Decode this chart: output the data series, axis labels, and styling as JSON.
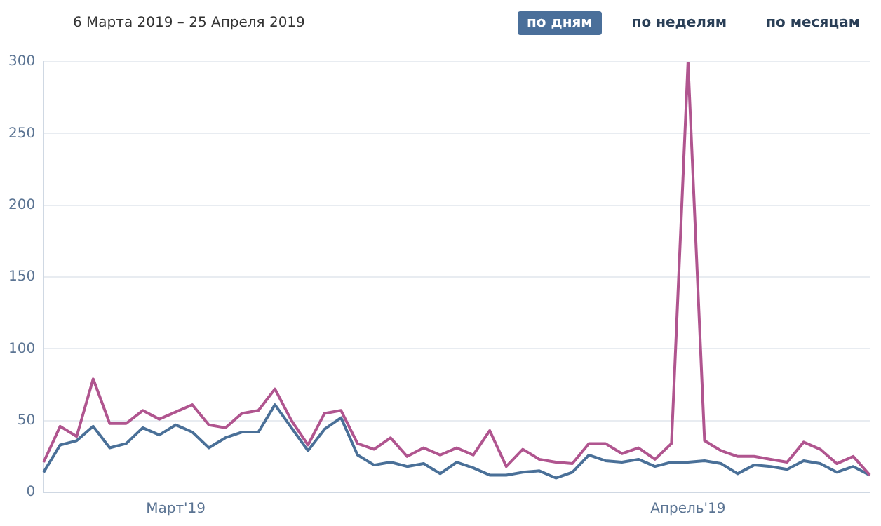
{
  "chart_data": {
    "type": "line",
    "title": "6 Марта 2019 – 25 Апреля 2019",
    "annotations": [
      "по дням",
      "по неделям",
      "по месяцам"
    ],
    "categories": [
      null,
      null,
      null,
      null,
      null,
      null,
      null,
      null,
      "Март'19",
      null,
      null,
      null,
      null,
      null,
      null,
      null,
      null,
      null,
      null,
      null,
      null,
      null,
      null,
      null,
      null,
      null,
      null,
      null,
      null,
      null,
      null,
      null,
      null,
      null,
      null,
      null,
      null,
      null,
      null,
      "Апрель'19",
      null,
      null,
      null,
      null,
      null,
      null,
      null,
      null,
      null,
      null,
      null
    ],
    "series": [
      {
        "color": "#b0558f",
        "values": [
          21,
          46,
          39,
          79,
          48,
          48,
          57,
          51,
          56,
          61,
          47,
          45,
          55,
          57,
          72,
          50,
          33,
          55,
          57,
          34,
          30,
          38,
          25,
          31,
          26,
          31,
          26,
          43,
          18,
          30,
          23,
          21,
          20,
          34,
          34,
          27,
          31,
          23,
          34,
          300,
          36,
          29,
          25,
          25,
          23,
          21,
          35,
          30,
          20,
          25,
          12
        ]
      },
      {
        "color": "#4a7098",
        "values": [
          14,
          33,
          36,
          46,
          31,
          34,
          45,
          40,
          47,
          42,
          31,
          38,
          42,
          42,
          61,
          45,
          29,
          44,
          52,
          26,
          19,
          21,
          18,
          20,
          13,
          21,
          17,
          12,
          12,
          14,
          15,
          10,
          14,
          26,
          22,
          21,
          23,
          18,
          21,
          21,
          22,
          20,
          13,
          19,
          18,
          16,
          22,
          20,
          14,
          18,
          12
        ]
      }
    ],
    "ylim": [
      0,
      300
    ],
    "yticks": [
      0,
      50,
      100,
      150,
      200,
      250,
      300
    ],
    "grid": "y",
    "legend": false,
    "marker": "none",
    "line_style": "solid"
  }
}
